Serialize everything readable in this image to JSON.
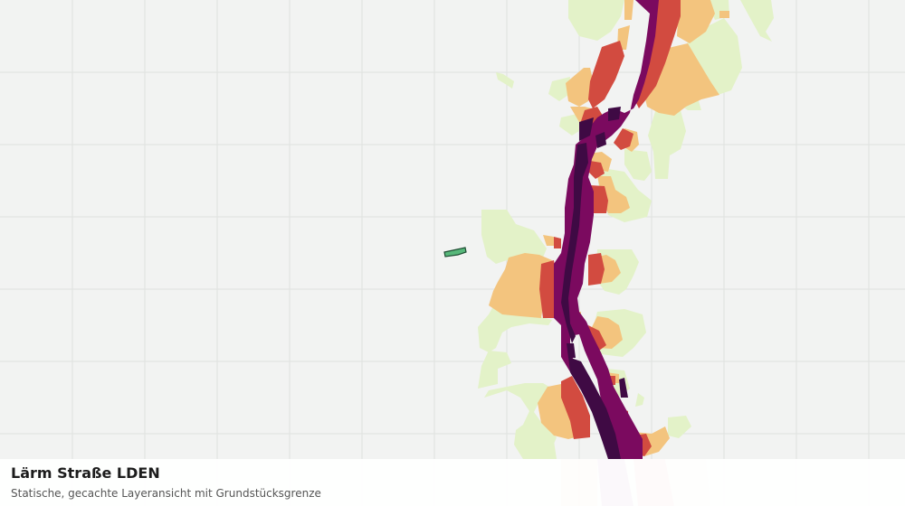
{
  "caption": {
    "title": "Lärm Straße LDEN",
    "subtitle": "Statische, gecachte Layeransicht mit Grundstücksgrenze"
  },
  "map": {
    "background_color": "#f2f3f2",
    "grid_color": "#dfe2df",
    "noise_classes": [
      {
        "key": "low",
        "color": "#e3f2c8"
      },
      {
        "key": "medium",
        "color": "#f3c47e"
      },
      {
        "key": "high",
        "color": "#d24b40"
      },
      {
        "key": "veryhigh",
        "color": "#7b0a5f"
      },
      {
        "key": "extreme",
        "color": "#3f0a44"
      }
    ],
    "parcel": {
      "fill": "#57b77a",
      "stroke": "#1f4d33"
    }
  }
}
